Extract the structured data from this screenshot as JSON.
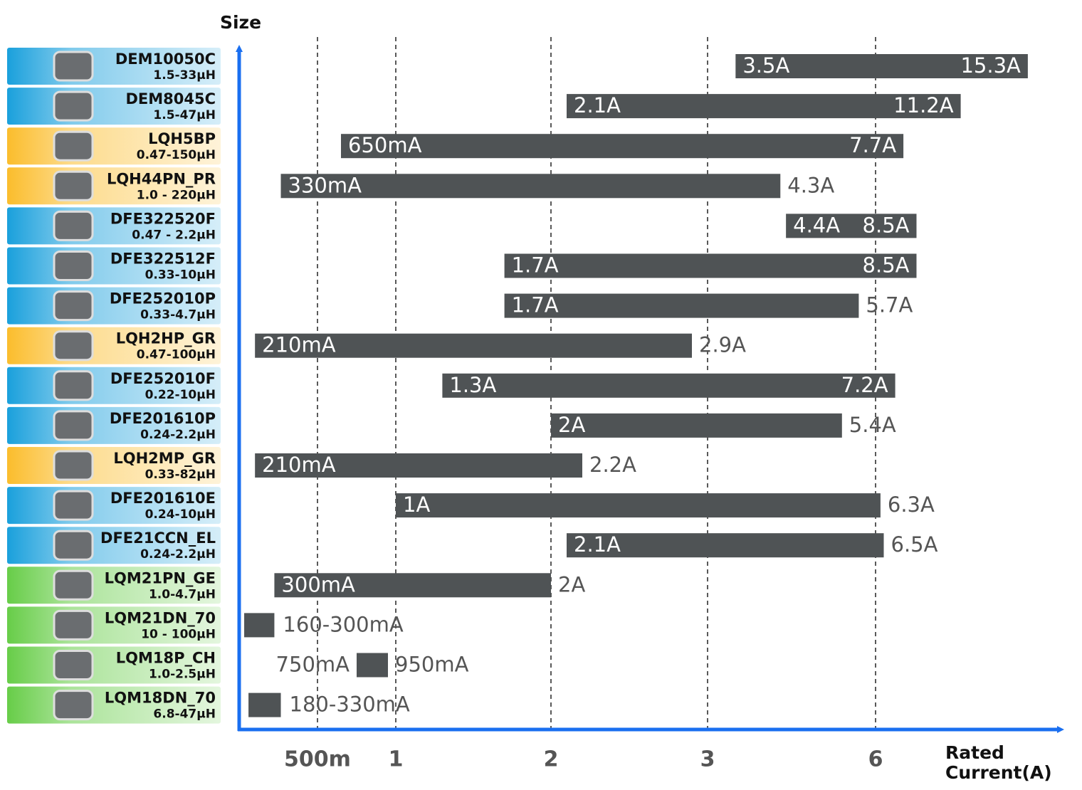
{
  "chart_data": {
    "type": "range-bar",
    "y_axis_label": "Size",
    "x_axis_label": "Rated Current(A)",
    "xlim": [
      0.15,
      16
    ],
    "xticks": [
      {
        "value": 0.5,
        "label": "500m"
      },
      1,
      2,
      3,
      6
    ],
    "bar_color": "#4f5355",
    "group_colors": {
      "blue": "#1aa0dc",
      "orange": "#fbbd2c",
      "green": "#67cd48"
    },
    "rows": [
      {
        "name": "DEM10050C",
        "inductance": "1.5-33µH",
        "group": "blue",
        "min": 3.5,
        "max": 15.3,
        "min_label": "3.5A",
        "max_label": "15.3A"
      },
      {
        "name": "DEM8045C",
        "inductance": "1.5-47µH",
        "group": "blue",
        "min": 2.1,
        "max": 11.2,
        "min_label": "2.1A",
        "max_label": "11.2A"
      },
      {
        "name": "LQH5BP",
        "inductance": "0.47-150µH",
        "group": "orange",
        "min": 0.65,
        "max": 7.7,
        "min_label": "650mA",
        "max_label": "7.7A"
      },
      {
        "name": "LQH44PN_PR",
        "inductance": "1.0 - 220µH",
        "group": "orange",
        "min": 0.33,
        "max": 4.3,
        "min_label": "330mA",
        "max_label": "4.3A"
      },
      {
        "name": "DFE322520F",
        "inductance": "0.47 - 2.2µH",
        "group": "blue",
        "min": 4.4,
        "max": 8.5,
        "min_label": "4.4A",
        "max_label": "8.5A"
      },
      {
        "name": "DFE322512F",
        "inductance": "0.33-10µH",
        "group": "blue",
        "min": 1.7,
        "max": 8.5,
        "min_label": "1.7A",
        "max_label": "8.5A"
      },
      {
        "name": "DFE252010P",
        "inductance": "0.33-4.7µH",
        "group": "blue",
        "min": 1.7,
        "max": 5.7,
        "min_label": "1.7A",
        "max_label": "5.7A"
      },
      {
        "name": "LQH2HP_GR",
        "inductance": "0.47-100µH",
        "group": "orange",
        "min": 0.21,
        "max": 2.9,
        "min_label": "210mA",
        "max_label": "2.9A"
      },
      {
        "name": "DFE252010F",
        "inductance": "0.22-10µH",
        "group": "blue",
        "min": 1.3,
        "max": 7.2,
        "min_label": "1.3A",
        "max_label": "7.2A"
      },
      {
        "name": "DFE201610P",
        "inductance": "0.24-2.2µH",
        "group": "blue",
        "min": 2,
        "max": 5.4,
        "min_label": "2A",
        "max_label": "5.4A"
      },
      {
        "name": "LQH2MP_GR",
        "inductance": "0.33-82µH",
        "group": "orange",
        "min": 0.21,
        "max": 2.2,
        "min_label": "210mA",
        "max_label": "2.2A"
      },
      {
        "name": "DFE201610E",
        "inductance": "0.24-10µH",
        "group": "blue",
        "min": 1,
        "max": 6.3,
        "min_label": "1A",
        "max_label": "6.3A"
      },
      {
        "name": "DFE21CCN_EL",
        "inductance": "0.24-2.2µH",
        "group": "blue",
        "min": 2.1,
        "max": 6.5,
        "min_label": "2.1A",
        "max_label": "6.5A"
      },
      {
        "name": "LQM21PN_GE",
        "inductance": "1.0-4.7µH",
        "group": "green",
        "min": 0.3,
        "max": 2,
        "min_label": "300mA",
        "max_label": "2A"
      },
      {
        "name": "LQM21DN_70",
        "inductance": "10 - 100µH",
        "group": "green",
        "min": 0.16,
        "max": 0.3,
        "range_label": "160-300mA"
      },
      {
        "name": "LQM18P_CH",
        "inductance": "1.0-2.5µH",
        "group": "green",
        "min": 0.75,
        "max": 0.95,
        "min_label": "750mA",
        "max_label": "950mA"
      },
      {
        "name": "LQM18DN_70",
        "inductance": "6.8-47µH",
        "group": "green",
        "min": 0.18,
        "max": 0.33,
        "range_label": "180-330mA"
      }
    ]
  }
}
